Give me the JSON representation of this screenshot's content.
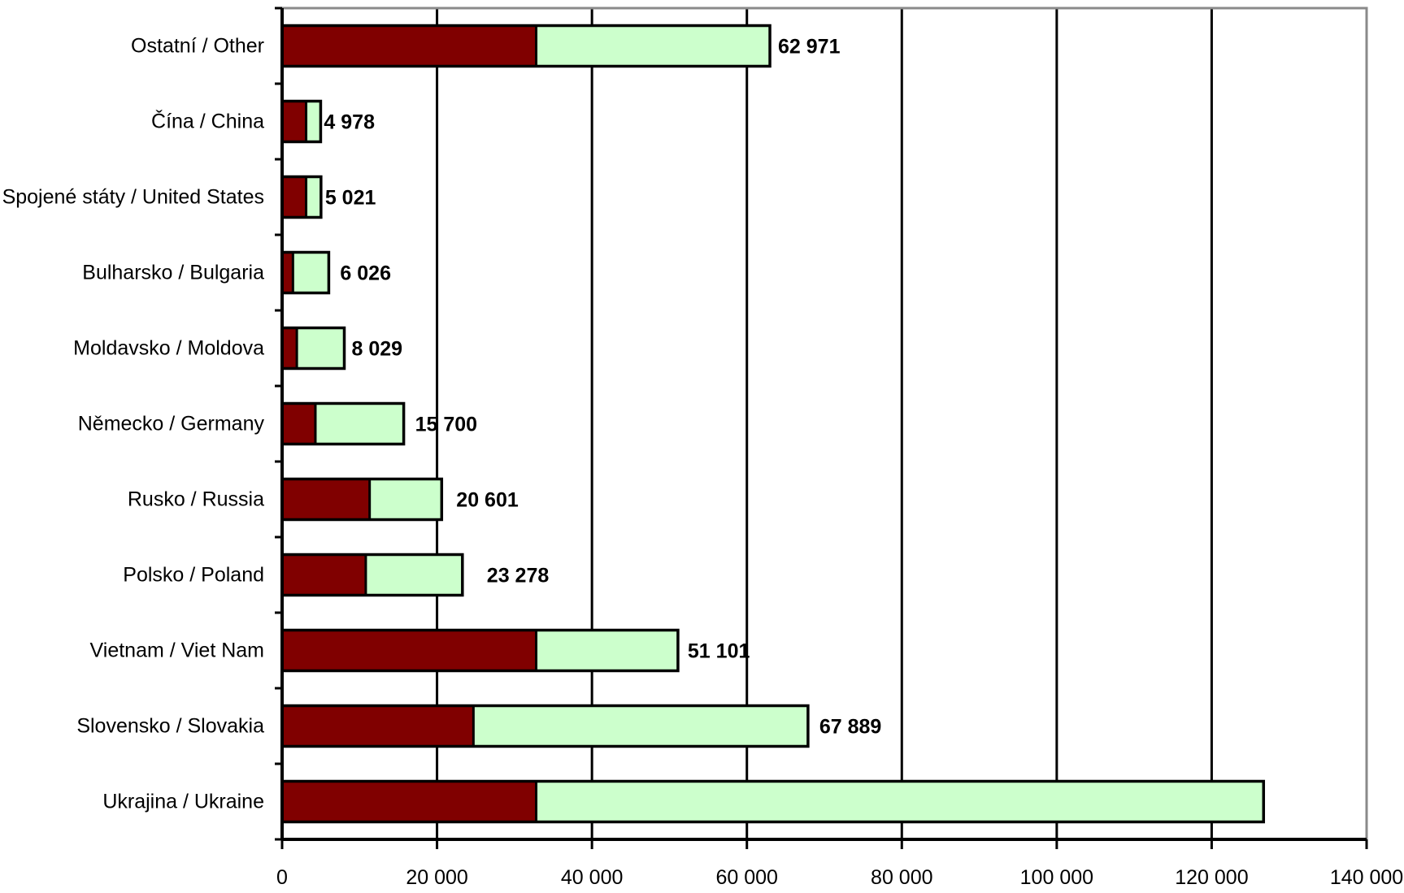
{
  "chart_data": {
    "type": "bar",
    "orientation": "horizontal",
    "stacked": true,
    "title": "",
    "xlabel": "",
    "ylabel": "",
    "xlim": [
      0,
      140000
    ],
    "grid": true,
    "legend": "none",
    "categories": [
      "Ostatní / Other",
      "Čína / China",
      "Spojené státy / United States",
      "Bulharsko / Bulgaria",
      "Moldavsko / Moldova",
      "Německo / Germany",
      "Rusko / Russia",
      "Polsko / Poland",
      "Vietnam / Viet Nam",
      "Slovensko / Slovakia",
      "Ukrajina / Ukraine"
    ],
    "series": [
      {
        "color": "#800000",
        "values": [
          32800,
          3100,
          3100,
          1400,
          1900,
          4300,
          11300,
          10800,
          32800,
          24700,
          32800
        ]
      },
      {
        "color": "#ccffcc",
        "values": [
          30171,
          1878,
          1921,
          4626,
          6129,
          11400,
          9301,
          12478,
          18301,
          43189,
          93900
        ]
      }
    ],
    "totals": [
      62971,
      4978,
      5021,
      6026,
      8029,
      15700,
      20601,
      23278,
      51101,
      67889,
      126700
    ],
    "value_labels": [
      "62 971",
      "4 978",
      "5 021",
      "6 026",
      "8 029",
      "15 700",
      "20 601",
      "23 278",
      "51 101",
      "67 889",
      ""
    ],
    "tick_values": [
      0,
      20000,
      40000,
      60000,
      80000,
      100000,
      120000,
      140000
    ],
    "tick_labels": [
      "0",
      "20 000",
      "40 000",
      "60 000",
      "80 000",
      "100 000",
      "120 000",
      "140 000"
    ]
  }
}
